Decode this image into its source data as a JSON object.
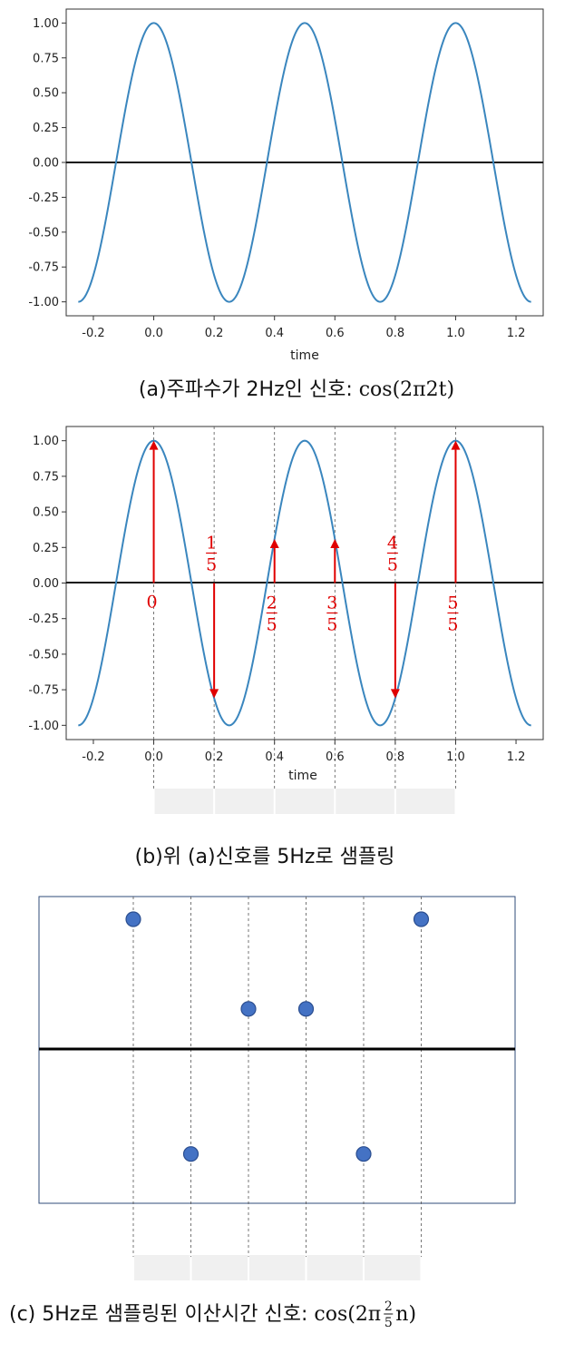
{
  "chart_data": [
    {
      "type": "line",
      "frequency_hz": 2,
      "x": [
        -0.25,
        1.25
      ],
      "xlabel": "time",
      "xticks": [
        "-0.2",
        "0.0",
        "0.2",
        "0.4",
        "0.6",
        "0.8",
        "1.0",
        "1.2"
      ],
      "yticks": [
        "-1.00",
        "-0.75",
        "-0.50",
        "-0.25",
        "0.00",
        "0.25",
        "0.50",
        "0.75",
        "1.00"
      ],
      "xlim": [
        -0.29,
        1.29
      ],
      "ylim": [
        -1.1,
        1.1
      ],
      "series_color": "#3a86be",
      "caption": {
        "prefix": "(a)주파수가 2Hz인 신호: ",
        "formula": "cos(2π2t)"
      }
    },
    {
      "type": "line",
      "frequency_hz": 2,
      "sampling_rate_hz": 5,
      "xlabel": "time",
      "xticks": [
        "-0.2",
        "0.0",
        "0.2",
        "0.4",
        "0.6",
        "0.8",
        "1.0",
        "1.2"
      ],
      "yticks": [
        "-1.00",
        "-0.75",
        "-0.50",
        "-0.25",
        "0.00",
        "0.25",
        "0.50",
        "0.75",
        "1.00"
      ],
      "xlim": [
        -0.29,
        1.29
      ],
      "ylim": [
        -1.1,
        1.1
      ],
      "samples": [
        {
          "t": 0.0,
          "value": 1.0,
          "label_num": "0",
          "label_den": ""
        },
        {
          "t": 0.2,
          "value": -0.809,
          "label_num": "1",
          "label_den": "5"
        },
        {
          "t": 0.4,
          "value": 0.309,
          "label_num": "2",
          "label_den": "5"
        },
        {
          "t": 0.6,
          "value": 0.309,
          "label_num": "3",
          "label_den": "5"
        },
        {
          "t": 0.8,
          "value": -0.809,
          "label_num": "4",
          "label_den": "5"
        },
        {
          "t": 1.0,
          "value": 1.0,
          "label_num": "5",
          "label_den": "5"
        }
      ],
      "arrow_color": "#e00000",
      "caption": "(b)위 (a)신호를 5Hz로 샘플링"
    },
    {
      "type": "scatter",
      "n": [
        0,
        1,
        2,
        3,
        4,
        5
      ],
      "values": [
        1.0,
        -0.809,
        0.309,
        0.309,
        -0.809,
        1.0
      ],
      "point_color": "#4472c4",
      "caption": {
        "prefix": "(c) 5Hz로 샘플링된 이산시간 신호: ",
        "formula_a": "cos(2π",
        "frac_num": "2",
        "frac_den": "5",
        "formula_b": "n)"
      }
    }
  ]
}
